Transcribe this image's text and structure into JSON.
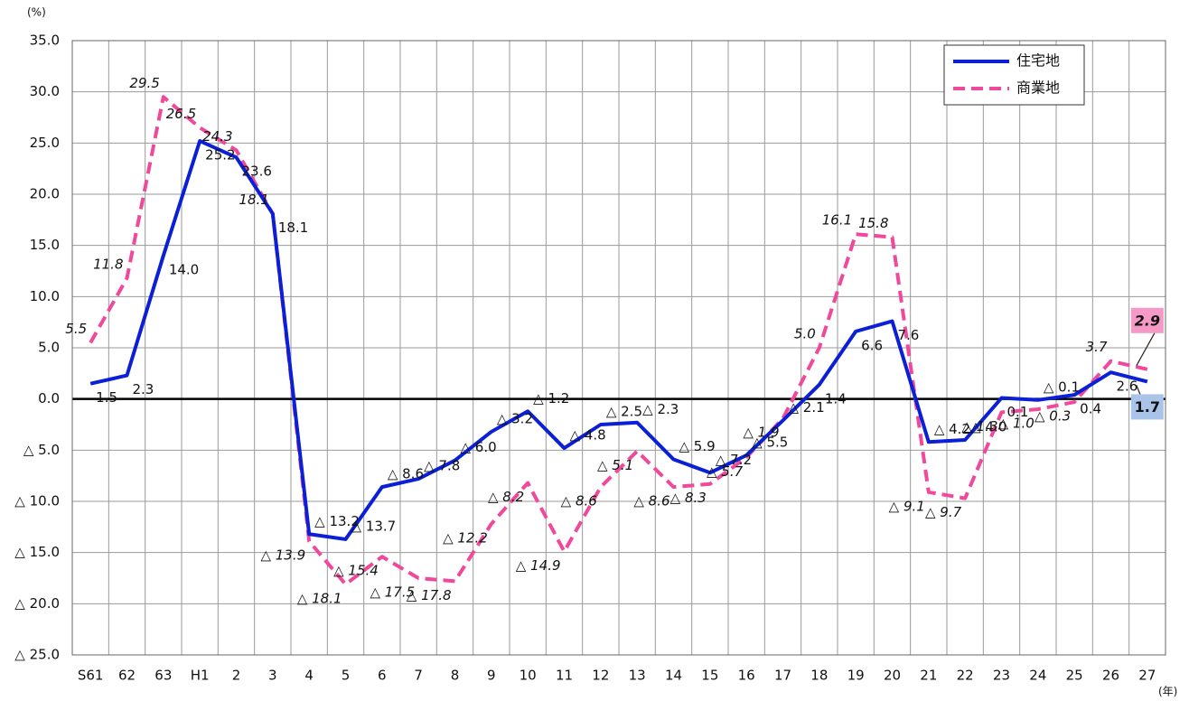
{
  "chart_data": {
    "type": "line",
    "y_unit": "(%)",
    "x_unit": "(年)",
    "categories": [
      "S61",
      "62",
      "63",
      "H1",
      "2",
      "3",
      "4",
      "5",
      "6",
      "7",
      "8",
      "9",
      "10",
      "11",
      "12",
      "13",
      "14",
      "15",
      "16",
      "17",
      "18",
      "19",
      "20",
      "21",
      "22",
      "23",
      "24",
      "25",
      "26",
      "27"
    ],
    "series": [
      {
        "name": "住宅地",
        "color": "#0a1fd6",
        "style": "solid",
        "values": [
          1.5,
          2.3,
          14.0,
          25.2,
          23.6,
          18.1,
          -13.2,
          -13.7,
          -8.6,
          -7.8,
          -6.0,
          -3.2,
          -1.2,
          -4.8,
          -2.5,
          -2.3,
          -5.9,
          -7.2,
          -5.5,
          -2.1,
          1.4,
          6.6,
          7.6,
          -4.2,
          -4.0,
          0.1,
          -0.1,
          0.4,
          2.6,
          1.7
        ],
        "value_labels": [
          "1.5",
          "2.3",
          "14.0",
          "25.2",
          "23.6",
          "18.1",
          "△ 13.2",
          "△ 13.7",
          "△ 8.6",
          "△ 7.8",
          "△ 6.0",
          "△ 3.2",
          "△ 1.2",
          "△ 4.8",
          "△ 2.5",
          "△ 2.3",
          "△ 5.9",
          "△ 7.2",
          "△ 5.5",
          "△ 2.1",
          "1.4",
          "6.6",
          "7.6",
          "△ 4.2",
          "△ 4.0",
          "0.1",
          "△ 0.1",
          "0.4",
          "2.6",
          "1.7"
        ]
      },
      {
        "name": "商業地",
        "color": "#f0489a",
        "style": "dashed",
        "values": [
          5.5,
          11.8,
          29.5,
          26.5,
          24.3,
          18.1,
          -13.9,
          -18.1,
          -15.4,
          -17.5,
          -17.8,
          -12.2,
          -8.2,
          -14.9,
          -8.6,
          -5.1,
          -8.6,
          -8.3,
          -5.7,
          -1.9,
          5.0,
          16.1,
          15.8,
          -9.1,
          -9.7,
          -1.3,
          -1.0,
          -0.3,
          3.7,
          2.9
        ],
        "value_labels": [
          "5.5",
          "11.8",
          "29.5",
          "26.5",
          "24.3",
          "18.1",
          "△ 13.9",
          "△ 18.1",
          "△ 15.4",
          "△ 17.5",
          "△ 17.8",
          "△ 12.2",
          "△ 8.2",
          "△ 14.9",
          "△ 8.6",
          "△ 5.1",
          "△ 8.6",
          "△ 8.3",
          "△ 5.7",
          "△ 1.9",
          "5.0",
          "16.1",
          "15.8",
          "△ 9.1",
          "△ 9.7",
          "△ 1.3",
          "△ 1.0",
          "△ 0.3",
          "3.7",
          "2.9"
        ]
      }
    ],
    "ylim": [
      -25,
      35
    ],
    "yticks": [
      {
        "value": 35,
        "label": "35.0"
      },
      {
        "value": 30,
        "label": "30.0"
      },
      {
        "value": 25,
        "label": "25.0"
      },
      {
        "value": 20,
        "label": "20.0"
      },
      {
        "value": 15,
        "label": "15.0"
      },
      {
        "value": 10,
        "label": "10.0"
      },
      {
        "value": 5,
        "label": "5.0"
      },
      {
        "value": 0,
        "label": "0.0"
      },
      {
        "value": -5,
        "label": "△ 5.0"
      },
      {
        "value": -10,
        "label": "△ 10.0"
      },
      {
        "value": -15,
        "label": "△ 15.0"
      },
      {
        "value": -20,
        "label": "△ 20.0"
      },
      {
        "value": -25,
        "label": "△ 25.0"
      }
    ],
    "grid": true,
    "legend": "upper right"
  }
}
